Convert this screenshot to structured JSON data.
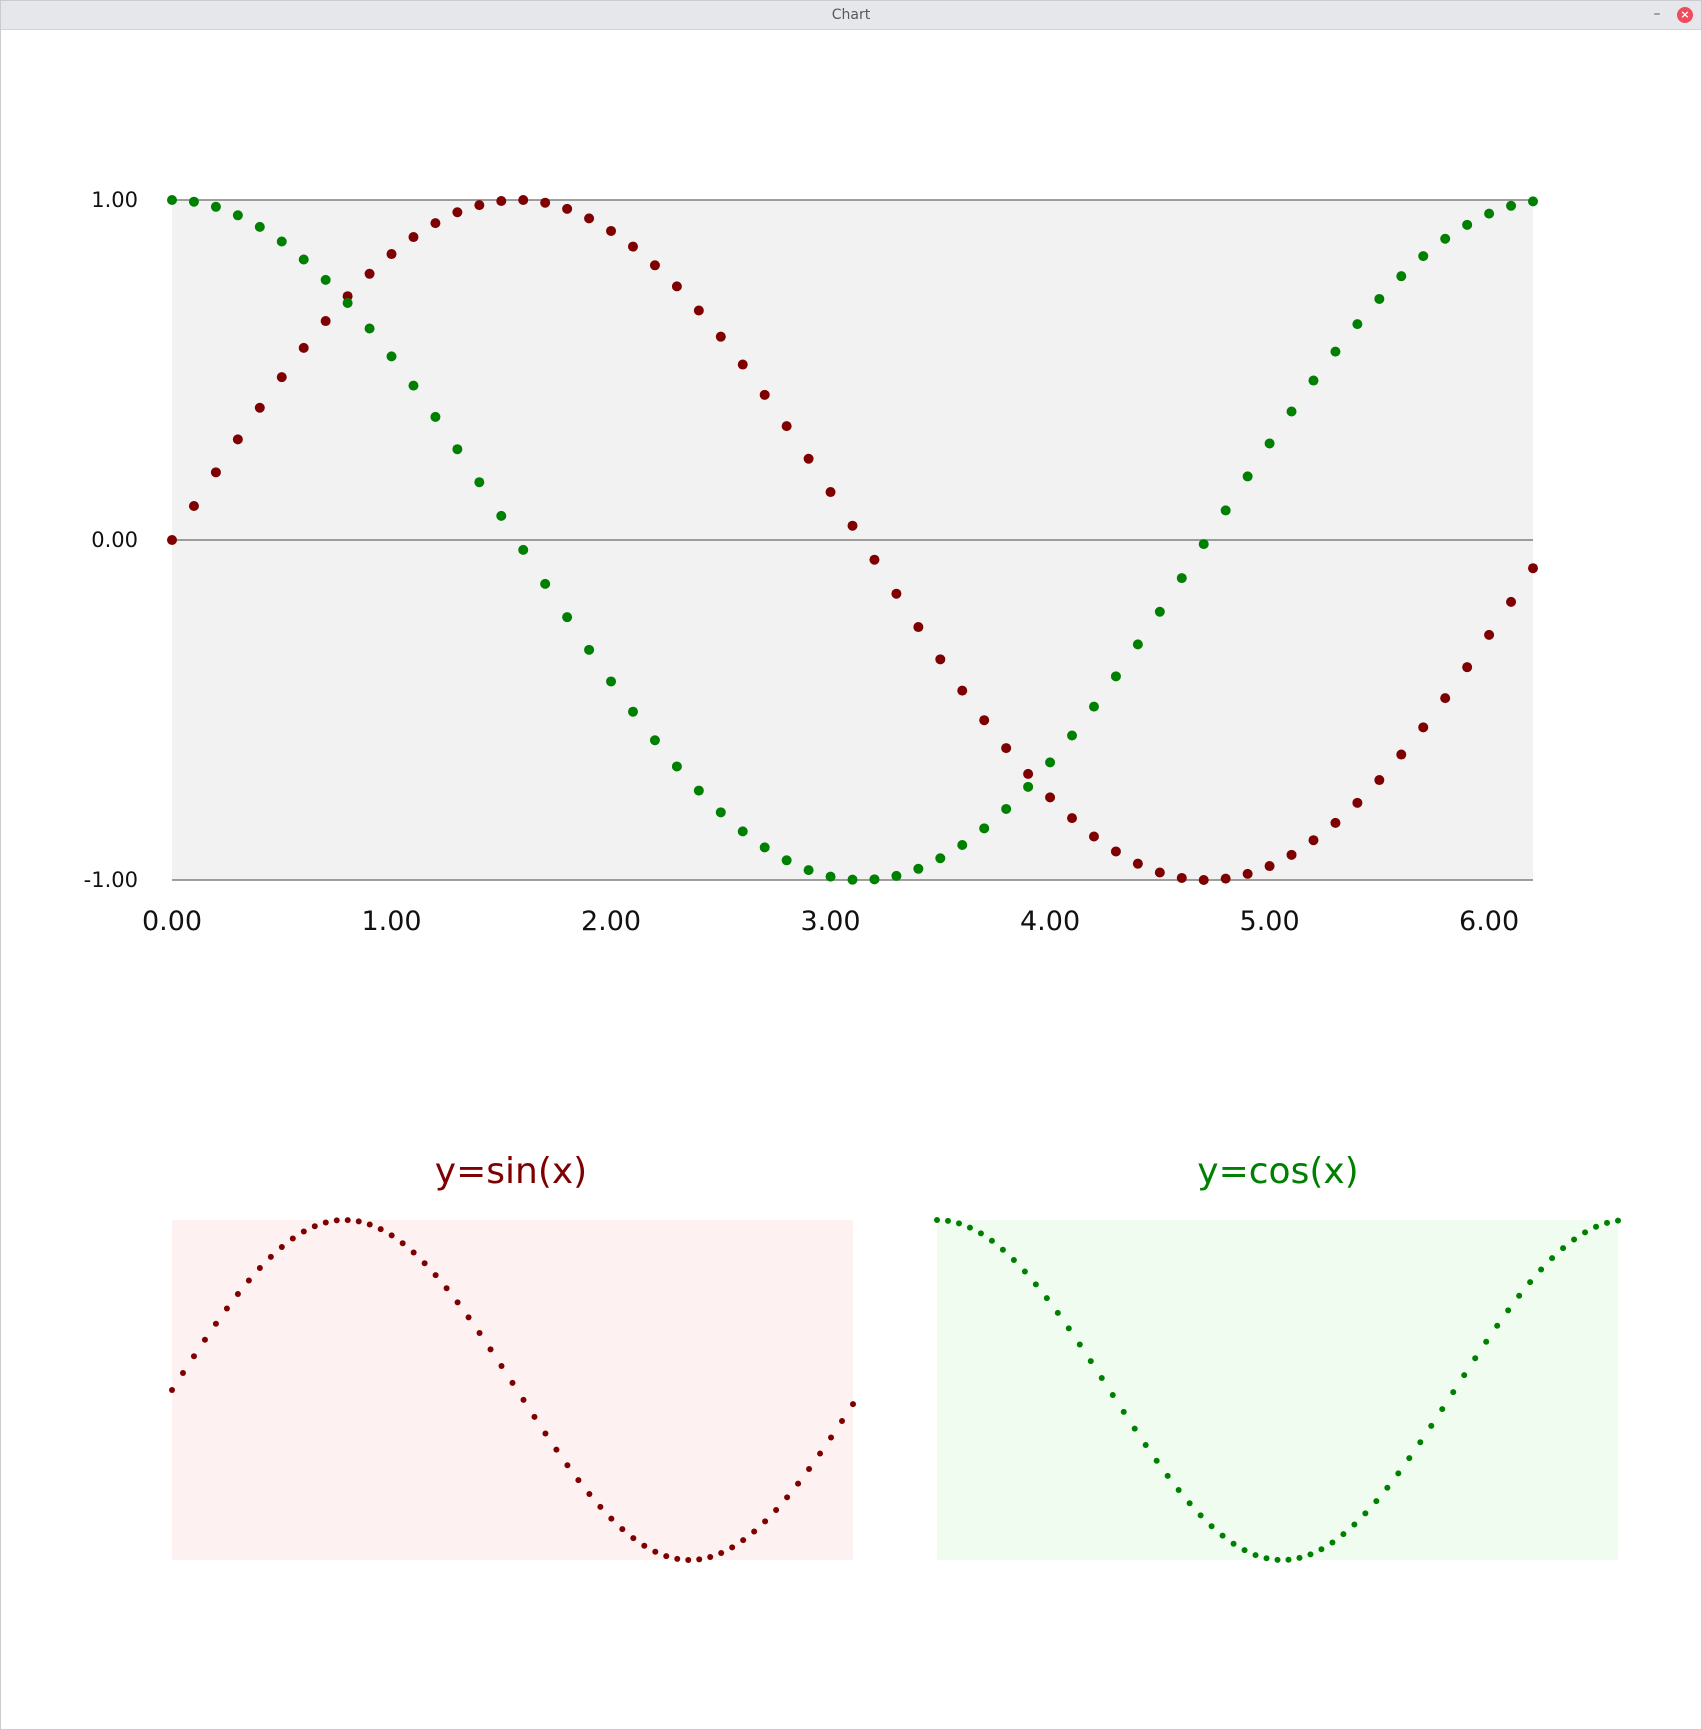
{
  "window": {
    "title": "Chart",
    "minimize_label": "–",
    "close_label": "×"
  },
  "colors": {
    "sin": "#7f0000",
    "cos": "#008000",
    "main_plot_bg": "#f2f2f2",
    "sin_plot_bg": "#fdf1f1",
    "cos_plot_bg": "#f1fcf1",
    "axis_line": "#808080"
  },
  "chart_data": [
    {
      "type": "scatter",
      "title": "",
      "xlabel": "",
      "ylabel": "",
      "xlim": [
        0,
        6.2
      ],
      "ylim": [
        -1,
        1
      ],
      "x_ticks": [
        "0.00",
        "1.00",
        "2.00",
        "3.00",
        "4.00",
        "5.00",
        "6.00"
      ],
      "y_ticks": [
        "1.00",
        "0.00",
        "-1.00"
      ],
      "grid": "horizontal lines at y = -1, 0, 1",
      "x": [
        0.0,
        0.1,
        0.2,
        0.3,
        0.4,
        0.5,
        0.6,
        0.7,
        0.8,
        0.9,
        1.0,
        1.1,
        1.2,
        1.3,
        1.4,
        1.5,
        1.6,
        1.7,
        1.8,
        1.9,
        2.0,
        2.1,
        2.2,
        2.3,
        2.4,
        2.5,
        2.6,
        2.7,
        2.8,
        2.9,
        3.0,
        3.1,
        3.2,
        3.3,
        3.4,
        3.5,
        3.6,
        3.7,
        3.8,
        3.9,
        4.0,
        4.1,
        4.2,
        4.3,
        4.4,
        4.5,
        4.6,
        4.7,
        4.8,
        4.9,
        5.0,
        5.1,
        5.2,
        5.3,
        5.4,
        5.5,
        5.6,
        5.7,
        5.8,
        5.9,
        6.0,
        6.1,
        6.2
      ],
      "series": [
        {
          "function": "sin",
          "color": "#7f0000",
          "values": [
            0.0,
            0.1,
            0.199,
            0.296,
            0.389,
            0.479,
            0.565,
            0.644,
            0.717,
            0.783,
            0.841,
            0.891,
            0.932,
            0.964,
            0.985,
            0.997,
            1.0,
            0.992,
            0.974,
            0.946,
            0.909,
            0.863,
            0.808,
            0.746,
            0.675,
            0.598,
            0.516,
            0.427,
            0.335,
            0.239,
            0.141,
            0.042,
            -0.058,
            -0.158,
            -0.256,
            -0.351,
            -0.443,
            -0.53,
            -0.612,
            -0.688,
            -0.757,
            -0.818,
            -0.872,
            -0.916,
            -0.952,
            -0.978,
            -0.994,
            -1.0,
            -0.996,
            -0.982,
            -0.959,
            -0.926,
            -0.883,
            -0.832,
            -0.773,
            -0.706,
            -0.631,
            -0.551,
            -0.465,
            -0.374,
            -0.279,
            -0.182,
            -0.083
          ]
        },
        {
          "function": "cos",
          "color": "#008000",
          "values": [
            1.0,
            0.995,
            0.98,
            0.955,
            0.921,
            0.878,
            0.825,
            0.765,
            0.697,
            0.622,
            0.54,
            0.454,
            0.362,
            0.267,
            0.17,
            0.071,
            -0.029,
            -0.129,
            -0.227,
            -0.323,
            -0.416,
            -0.505,
            -0.589,
            -0.666,
            -0.737,
            -0.801,
            -0.857,
            -0.904,
            -0.942,
            -0.971,
            -0.99,
            -0.999,
            -0.998,
            -0.988,
            -0.967,
            -0.936,
            -0.897,
            -0.848,
            -0.791,
            -0.726,
            -0.654,
            -0.575,
            -0.49,
            -0.401,
            -0.307,
            -0.211,
            -0.112,
            -0.012,
            0.087,
            0.187,
            0.284,
            0.378,
            0.469,
            0.554,
            0.635,
            0.709,
            0.776,
            0.835,
            0.886,
            0.927,
            0.96,
            0.983,
            0.996
          ]
        }
      ]
    },
    {
      "type": "scatter",
      "title": "y=sin(x)",
      "xlim": [
        0,
        6.2
      ],
      "ylim": [
        -1,
        1
      ],
      "function": "sin",
      "x_step": 0.1,
      "color": "#7f0000"
    },
    {
      "type": "scatter",
      "title": "y=cos(x)",
      "xlim": [
        0,
        6.2
      ],
      "ylim": [
        -1,
        1
      ],
      "function": "cos",
      "x_step": 0.1,
      "color": "#008000"
    }
  ]
}
